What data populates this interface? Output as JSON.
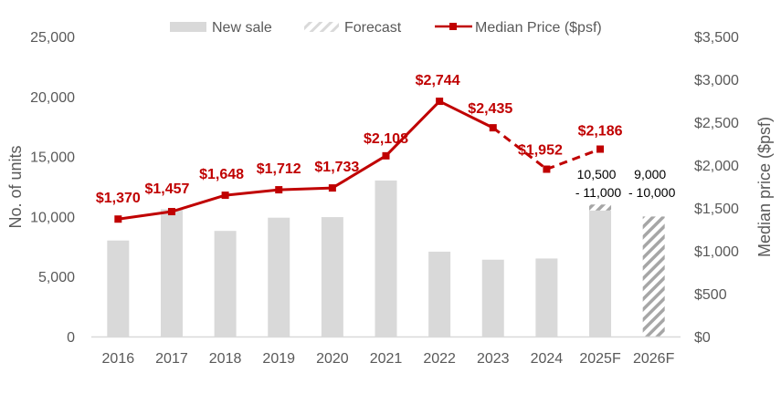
{
  "chart_data": {
    "type": "bar",
    "title": "",
    "categories": [
      "2016",
      "2017",
      "2018",
      "2019",
      "2020",
      "2021",
      "2022",
      "2023",
      "2024",
      "2025F",
      "2026F"
    ],
    "series": [
      {
        "name": "New sale",
        "type": "bar",
        "axis": "left",
        "color": "#d9d9d9",
        "values": [
          8000,
          10600,
          8800,
          9900,
          9950,
          13000,
          7070,
          6400,
          6500,
          10500,
          9000
        ]
      },
      {
        "name": "Forecast",
        "type": "bar-stacked-hatched",
        "axis": "left",
        "color": "#a6a6a6",
        "values": [
          null,
          null,
          null,
          null,
          null,
          null,
          null,
          null,
          null,
          500,
          1000
        ],
        "range_labels": [
          null,
          null,
          null,
          null,
          null,
          null,
          null,
          null,
          null,
          "10,500\n- 11,000",
          "9,000\n- 10,000"
        ]
      },
      {
        "name": "Median Price ($psf)",
        "type": "line",
        "axis": "right",
        "color": "#c00000",
        "values": [
          1370,
          1457,
          1648,
          1712,
          1733,
          2108,
          2744,
          2435,
          1952,
          2186,
          null
        ],
        "labels": [
          "$1,370",
          "$1,457",
          "$1,648",
          "$1,712",
          "$1,733",
          "$2,108",
          "$2,744",
          "$2,435",
          "$1,952",
          "$2,186",
          null
        ],
        "dashed_from_index": 7
      }
    ],
    "ylabel": "No. of units",
    "ylim": [
      0,
      25000
    ],
    "yticks": [
      "0",
      "5,000",
      "10,000",
      "15,000",
      "20,000",
      "25,000"
    ],
    "ytick_values": [
      0,
      5000,
      10000,
      15000,
      20000,
      25000
    ],
    "y2label": "Median price ($psf)",
    "y2lim": [
      0,
      3500
    ],
    "y2ticks": [
      "$0",
      "$500",
      "$1,000",
      "$1,500",
      "$2,000",
      "$2,500",
      "$3,000",
      "$3,500"
    ],
    "y2tick_values": [
      0,
      500,
      1000,
      1500,
      2000,
      2500,
      3000,
      3500
    ],
    "xlabel": "",
    "grid": false,
    "legend": {
      "position": "top-center",
      "entries": [
        "New sale",
        "Forecast",
        "Median Price ($psf)"
      ]
    }
  }
}
